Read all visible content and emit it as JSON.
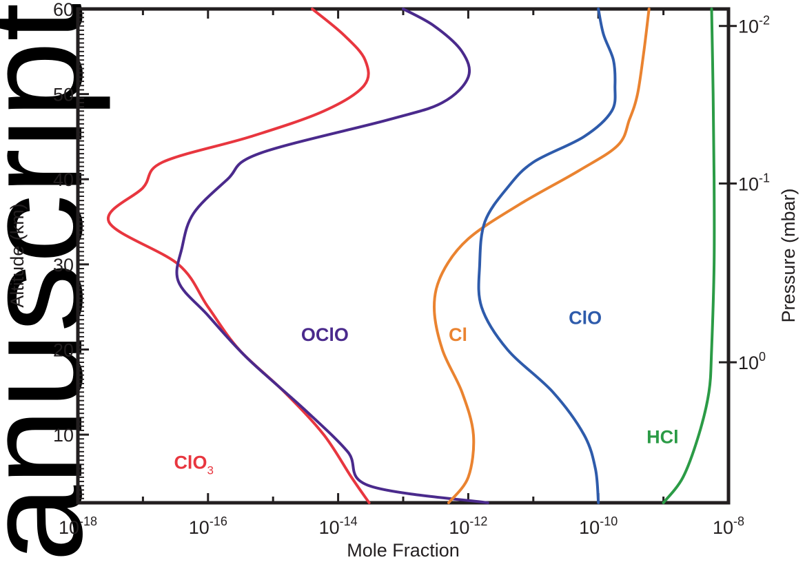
{
  "watermark": "anuscript",
  "chart_data": {
    "type": "line",
    "xlabel": "Mole Fraction",
    "ylabel": "Altitude (km)",
    "y2label": "Pressure (mbar)",
    "xscale": "log",
    "xlim": [
      1e-18,
      1e-08
    ],
    "ylim": [
      2,
      60
    ],
    "x_ticks": [
      {
        "value": 1e-18,
        "base": "10",
        "exp": "-18"
      },
      {
        "value": 1e-16,
        "base": "10",
        "exp": "-16"
      },
      {
        "value": 1e-14,
        "base": "10",
        "exp": "-14"
      },
      {
        "value": 1e-12,
        "base": "10",
        "exp": "-12"
      },
      {
        "value": 1e-10,
        "base": "10",
        "exp": "-10"
      },
      {
        "value": 1e-08,
        "base": "10",
        "exp": "-8"
      }
    ],
    "y_ticks": [
      10,
      20,
      30,
      40,
      50,
      60
    ],
    "y2_ticks": [
      {
        "altitude": 58,
        "base": "10",
        "exp": "-2"
      },
      {
        "altitude": 39.5,
        "base": "10",
        "exp": "-1"
      },
      {
        "altitude": 18.5,
        "base": "10",
        "exp": "0"
      }
    ],
    "grid": false,
    "legend": "none",
    "series": [
      {
        "label": "ClO",
        "label_sub": "3",
        "color": "#e8363f",
        "label_anchor": {
          "x": 3e-17,
          "y": 6
        },
        "points": [
          [
            3e-14,
            2
          ],
          [
            1.6e-14,
            5
          ],
          [
            6e-15,
            10
          ],
          [
            1.5e-15,
            15
          ],
          [
            3e-16,
            20
          ],
          [
            1e-16,
            25
          ],
          [
            3.5e-17,
            30
          ],
          [
            3e-18,
            35
          ],
          [
            1e-17,
            39
          ],
          [
            2e-17,
            42
          ],
          [
            4.5e-16,
            45
          ],
          [
            6e-15,
            48
          ],
          [
            2.5e-14,
            51
          ],
          [
            2.6e-14,
            54
          ],
          [
            1.2e-14,
            57
          ],
          [
            4e-15,
            60
          ]
        ]
      },
      {
        "label": "OClO",
        "label_sub": "",
        "color": "#4a2a8c",
        "label_anchor": {
          "x": 2.7e-15,
          "y": 21
        },
        "points": [
          [
            2e-12,
            2
          ],
          [
            3e-14,
            4
          ],
          [
            1.4e-14,
            8
          ],
          [
            3e-15,
            13
          ],
          [
            4e-16,
            19
          ],
          [
            1e-16,
            24
          ],
          [
            3.5e-17,
            28
          ],
          [
            4e-17,
            32
          ],
          [
            6e-17,
            36
          ],
          [
            2e-16,
            40
          ],
          [
            6e-16,
            43
          ],
          [
            6e-14,
            47
          ],
          [
            4e-13,
            49
          ],
          [
            1e-12,
            52
          ],
          [
            8e-13,
            55
          ],
          [
            3e-13,
            58
          ],
          [
            1e-13,
            60
          ]
        ]
      },
      {
        "label": "Cl",
        "label_sub": "",
        "color": "#ea8330",
        "label_anchor": {
          "x": 5e-13,
          "y": 21
        },
        "points": [
          [
            5e-13,
            2
          ],
          [
            1e-12,
            5
          ],
          [
            1.2e-12,
            10
          ],
          [
            8e-13,
            15
          ],
          [
            4e-13,
            20
          ],
          [
            3e-13,
            25
          ],
          [
            4e-13,
            29
          ],
          [
            1e-12,
            33
          ],
          [
            6e-12,
            37
          ],
          [
            5e-11,
            41
          ],
          [
            2e-10,
            44
          ],
          [
            3e-10,
            47
          ],
          [
            4e-10,
            50
          ],
          [
            5e-10,
            55
          ],
          [
            6e-10,
            60
          ]
        ]
      },
      {
        "label": "ClO",
        "label_sub": "",
        "color": "#2e5bab",
        "label_anchor": {
          "x": 3.5e-11,
          "y": 23
        },
        "points": [
          [
            1e-10,
            2
          ],
          [
            9e-11,
            6
          ],
          [
            6e-11,
            10
          ],
          [
            2e-11,
            15
          ],
          [
            4e-12,
            20
          ],
          [
            1.6e-12,
            25
          ],
          [
            1.5e-12,
            30
          ],
          [
            1.8e-12,
            35
          ],
          [
            4e-12,
            39
          ],
          [
            1e-11,
            42
          ],
          [
            6e-11,
            45
          ],
          [
            1.6e-10,
            48
          ],
          [
            1.8e-10,
            51
          ],
          [
            1.7e-10,
            54
          ],
          [
            1.2e-10,
            57
          ],
          [
            1e-10,
            60
          ]
        ]
      },
      {
        "label": "HCl",
        "label_sub": "",
        "color": "#2b9b46",
        "label_anchor": {
          "x": 5.5e-10,
          "y": 9
        },
        "points": [
          [
            1e-09,
            2
          ],
          [
            2e-09,
            5
          ],
          [
            3.5e-09,
            10
          ],
          [
            5e-09,
            15
          ],
          [
            5.5e-09,
            20
          ],
          [
            6e-09,
            30
          ],
          [
            6e-09,
            40
          ],
          [
            5.8e-09,
            50
          ],
          [
            5.5e-09,
            60
          ]
        ]
      }
    ]
  }
}
